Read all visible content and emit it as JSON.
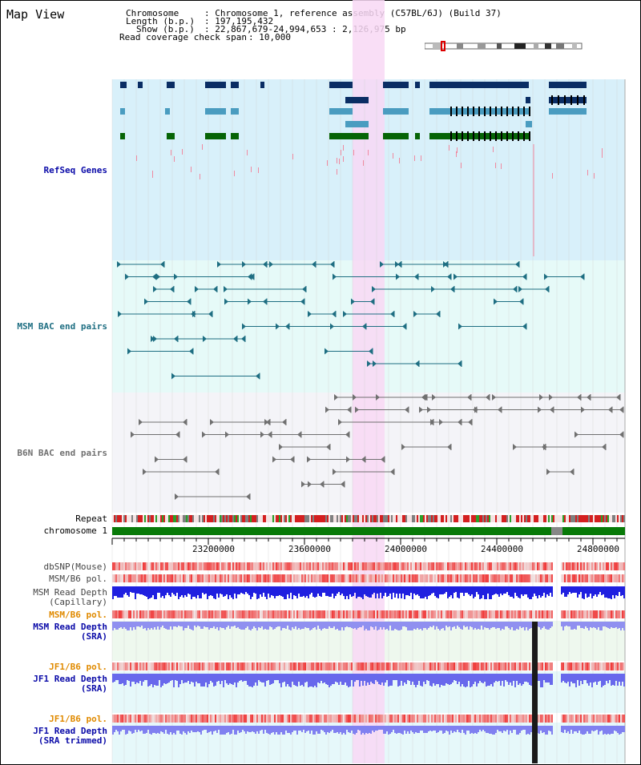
{
  "page": {
    "title": "Map View"
  },
  "info": {
    "chromosome_key": "Chromosome",
    "chromosome_val": ": Chromosome 1, reference assembly (C57BL/6J) (Build 37)",
    "length_key": "Length (b.p.)",
    "length_val": ": 197,195,432",
    "show_key": "Show (b.p.)",
    "show_val": ": 22,867,679-24,994,653 : 2,126,975 bp",
    "coverage_key": "Read coverage check span",
    "coverage_val": ": 10,000"
  },
  "tracks": {
    "refseq": "RefSeq Genes",
    "msm_bac": "MSM BAC end pairs",
    "b6n_bac": "B6N BAC end pairs",
    "repeat": "Repeat",
    "chromosome": "chromosome 1",
    "dbsnp": "dbSNP(Mouse)",
    "msm_b6_pol": "MSM/B6 pol.",
    "msm_depth_cap_1": "MSM Read Depth",
    "msm_depth_cap_2": "(Capillary)",
    "msm_b6_pol2": "MSM/B6 pol.",
    "msm_depth_sra_1": "MSM Read Depth",
    "msm_depth_sra_2": "(SRA)",
    "jf1_b6_pol": "JF1/B6 pol.",
    "jf1_depth_sra_1": "JF1 Read Depth",
    "jf1_depth_sra_2": "(SRA)",
    "jf1_b6_pol2": "JF1/B6 pol.",
    "jf1_depth_trim_1": "JF1 Read Depth",
    "jf1_depth_trim_2": "(SRA trimmed)"
  },
  "axis": {
    "ticks": [
      "23200000",
      "23600000",
      "24000000",
      "24400000",
      "24800000"
    ]
  },
  "colors": {
    "refseq_bg": "#d8f0fa",
    "msm_bg": "#e6faf8",
    "b6n_bg": "#f4f4f8",
    "highlight": "#f8d8f4",
    "gene_dark": "#0a2d64",
    "gene_light": "#4a9cc0",
    "gene_green": "#066406",
    "msm_bac": "#1e6e82",
    "b6n_bac": "#707070",
    "chrom_green": "#087a08",
    "label_blue": "#0a0aa8",
    "label_orange": "#e08a00"
  }
}
